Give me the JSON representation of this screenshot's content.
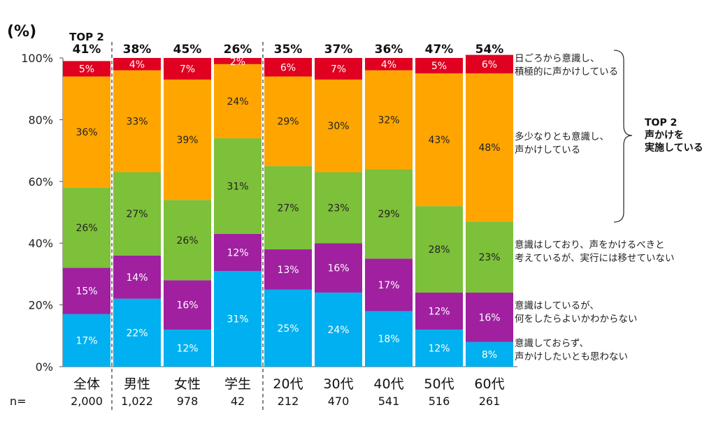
{
  "chart_data": {
    "type": "bar",
    "stacked": true,
    "unit_label": "(%)",
    "top_header": "TOP 2",
    "ylim": [
      0,
      100
    ],
    "yticks": [
      "0%",
      "20%",
      "40%",
      "60%",
      "80%",
      "100%"
    ],
    "categories": [
      "全体",
      "男性",
      "女性",
      "学生",
      "20代",
      "30代",
      "40代",
      "50代",
      "60代"
    ],
    "n_label": "n=",
    "n_values": [
      "2,000",
      "1,022",
      "978",
      "42",
      "212",
      "470",
      "541",
      "516",
      "261"
    ],
    "top2_labels": [
      "41%",
      "38%",
      "45%",
      "26%",
      "35%",
      "37%",
      "36%",
      "47%",
      "54%"
    ],
    "series": [
      {
        "name": "意識しておらず、声かけしたいとも思わない",
        "legend_lines": [
          "意識しておらず、",
          "声かけしたいとも思わない"
        ],
        "color": "#00b0f0",
        "values": [
          17,
          22,
          12,
          31,
          25,
          24,
          18,
          12,
          8
        ],
        "labels": [
          "17%",
          "22%",
          "12%",
          "31%",
          "25%",
          "24%",
          "18%",
          "12%",
          "8%"
        ]
      },
      {
        "name": "意識はしているが、何をしたらよいかわからない",
        "legend_lines": [
          "意識はしているが、",
          "何をしたらよいかわからない"
        ],
        "color": "#a020a0",
        "values": [
          15,
          14,
          16,
          12,
          13,
          16,
          17,
          12,
          16
        ],
        "labels": [
          "15%",
          "14%",
          "16%",
          "12%",
          "13%",
          "16%",
          "17%",
          "12%",
          "16%"
        ]
      },
      {
        "name": "意識はしており、声をかけるべきと考えているが、実行には移せていない",
        "legend_lines": [
          "意識はしており、声をかけるべきと",
          "考えているが、実行には移せていない"
        ],
        "color": "#7dc03a",
        "values": [
          26,
          27,
          26,
          31,
          27,
          23,
          29,
          28,
          23
        ],
        "labels": [
          "26%",
          "27%",
          "26%",
          "31%",
          "27%",
          "23%",
          "29%",
          "28%",
          "23%"
        ]
      },
      {
        "name": "多少なりとも意識し、声かけしている",
        "legend_lines": [
          "多少なりとも意識し、",
          "声かけしている"
        ],
        "color": "#ffa500",
        "values": [
          36,
          33,
          39,
          24,
          29,
          30,
          32,
          43,
          48
        ],
        "labels": [
          "36%",
          "33%",
          "39%",
          "24%",
          "29%",
          "30%",
          "32%",
          "43%",
          "48%"
        ]
      },
      {
        "name": "日ごろから意識し、積極的に声かけしている",
        "legend_lines": [
          "日ごろから意識し、",
          "積極的に声かけしている"
        ],
        "color": "#e00020",
        "values": [
          5,
          4,
          7,
          2,
          6,
          7,
          4,
          5,
          6
        ],
        "labels": [
          "5%",
          "4%",
          "7%",
          "2%",
          "6%",
          "7%",
          "4%",
          "5%",
          "6%"
        ]
      }
    ],
    "bracket_label_lines": [
      "TOP 2",
      "声かけを",
      "実施している"
    ]
  }
}
